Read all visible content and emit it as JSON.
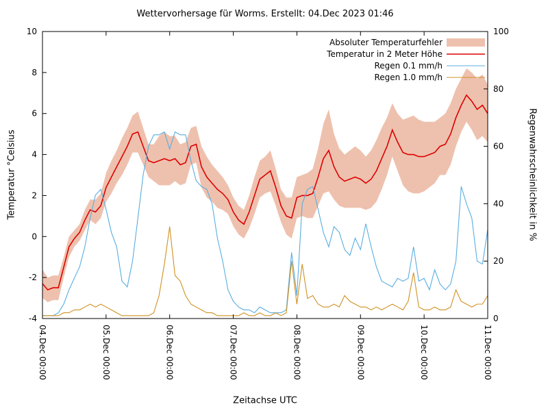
{
  "chart_data": {
    "type": "line",
    "title": "Wettervorhersage für Worms. Erstellt: 04.Dec 2023 01:46",
    "xlabel": "Zeitachse UTC",
    "ylabel_left": "Temperatur °Celsius",
    "ylabel_right": "Regenwahrscheinlichkeit in %",
    "ylim_left": [
      -4,
      10
    ],
    "ylim_right": [
      0,
      100
    ],
    "yticks_left": [
      -4,
      -2,
      0,
      2,
      4,
      6,
      8,
      10
    ],
    "yticks_right": [
      0,
      20,
      40,
      60,
      80,
      100
    ],
    "x_range_hours": [
      0,
      168
    ],
    "x_step_hours": 2,
    "xtick_hours": [
      0,
      24,
      48,
      72,
      96,
      120,
      144,
      168
    ],
    "xtick_labels": [
      "04.Dec 00:00",
      "05.Dec 00:00",
      "06.Dec 00:00",
      "07.Dec 00:00",
      "08.Dec 00:00",
      "09.Dec 00:00",
      "10.Dec 00:00",
      "11.Dec 00:00"
    ],
    "grid": false,
    "legend_position": "top-right",
    "series": [
      {
        "name": "Absoluter Temperaturfehler",
        "kind": "band",
        "axis": "left",
        "color": "#eec1ae",
        "halfwidth": [
          0.7,
          0.6,
          0.6,
          0.6,
          0.5,
          0.5,
          0.4,
          0.4,
          0.5,
          0.5,
          0.6,
          0.6,
          0.7,
          0.8,
          0.8,
          0.9,
          0.9,
          0.9,
          1.0,
          0.9,
          0.8,
          0.9,
          1.2,
          1.3,
          1.2,
          1.1,
          1.0,
          1.0,
          0.9,
          0.9,
          1.0,
          1.0,
          0.9,
          0.9,
          0.8,
          0.7,
          0.7,
          0.7,
          0.7,
          0.8,
          0.9,
          0.9,
          0.9,
          1.0,
          0.9,
          0.8,
          0.9,
          1.0,
          1.0,
          1.0,
          1.1,
          1.2,
          1.4,
          1.7,
          2.0,
          1.6,
          1.4,
          1.3,
          1.4,
          1.5,
          1.4,
          1.3,
          1.4,
          1.5,
          1.5,
          1.4,
          1.3,
          1.4,
          1.6,
          1.8,
          1.9,
          1.8,
          1.7,
          1.6,
          1.5,
          1.4,
          1.5,
          1.5,
          1.4,
          1.3,
          1.3,
          1.4,
          1.5,
          1.5,
          1.4
        ]
      },
      {
        "name": "Temperatur in 2 Meter Höhe",
        "kind": "line",
        "axis": "left",
        "color": "#dd0000",
        "values": [
          -2.3,
          -2.6,
          -2.5,
          -2.5,
          -1.5,
          -0.5,
          -0.1,
          0.2,
          0.8,
          1.3,
          1.2,
          1.5,
          2.4,
          2.9,
          3.4,
          3.9,
          4.4,
          5.0,
          5.1,
          4.4,
          3.7,
          3.6,
          3.7,
          3.8,
          3.7,
          3.8,
          3.5,
          3.6,
          4.4,
          4.5,
          3.4,
          2.9,
          2.6,
          2.3,
          2.1,
          1.8,
          1.2,
          0.8,
          0.6,
          1.2,
          2.0,
          2.8,
          3.0,
          3.2,
          2.4,
          1.5,
          1.0,
          0.9,
          1.9,
          2.0,
          2.0,
          2.1,
          2.9,
          3.8,
          4.2,
          3.4,
          2.9,
          2.7,
          2.8,
          2.9,
          2.8,
          2.6,
          2.8,
          3.2,
          3.8,
          4.4,
          5.2,
          4.6,
          4.1,
          4.0,
          4.0,
          3.9,
          3.9,
          4.0,
          4.1,
          4.4,
          4.5,
          5.0,
          5.8,
          6.4,
          6.9,
          6.6,
          6.2,
          6.4,
          6.0
        ]
      },
      {
        "name": "Regen 0.1 mm/h",
        "kind": "line",
        "axis": "right",
        "color": "#58ade0",
        "values": [
          1,
          1,
          1,
          2,
          5,
          10,
          14,
          18,
          25,
          35,
          43,
          45,
          38,
          30,
          25,
          13,
          11,
          20,
          35,
          50,
          60,
          64,
          64,
          65,
          59,
          65,
          64,
          64,
          55,
          48,
          46,
          45,
          40,
          28,
          20,
          10,
          6,
          4,
          3,
          3,
          2,
          4,
          3,
          2,
          2,
          2,
          3,
          23,
          8,
          40,
          45,
          46,
          38,
          30,
          25,
          32,
          30,
          24,
          22,
          28,
          24,
          33,
          25,
          18,
          13,
          12,
          11,
          14,
          13,
          14,
          25,
          13,
          14,
          10,
          17,
          12,
          10,
          12,
          20,
          46,
          40,
          35,
          20,
          19,
          31
        ]
      },
      {
        "name": "Regen 1.0 mm/h",
        "kind": "line",
        "axis": "right",
        "color": "#d09020",
        "values": [
          1,
          1,
          1,
          1,
          2,
          2,
          3,
          3,
          4,
          5,
          4,
          5,
          4,
          3,
          2,
          1,
          1,
          1,
          1,
          1,
          1,
          2,
          8,
          19,
          32,
          15,
          13,
          8,
          5,
          4,
          3,
          2,
          2,
          1,
          1,
          1,
          1,
          1,
          2,
          1,
          1,
          2,
          1,
          1,
          2,
          1,
          2,
          20,
          5,
          19,
          7,
          8,
          5,
          4,
          4,
          5,
          4,
          8,
          6,
          5,
          4,
          4,
          3,
          4,
          3,
          4,
          5,
          4,
          3,
          6,
          16,
          4,
          3,
          3,
          4,
          3,
          3,
          4,
          10,
          6,
          5,
          4,
          5,
          5,
          8
        ]
      }
    ]
  }
}
